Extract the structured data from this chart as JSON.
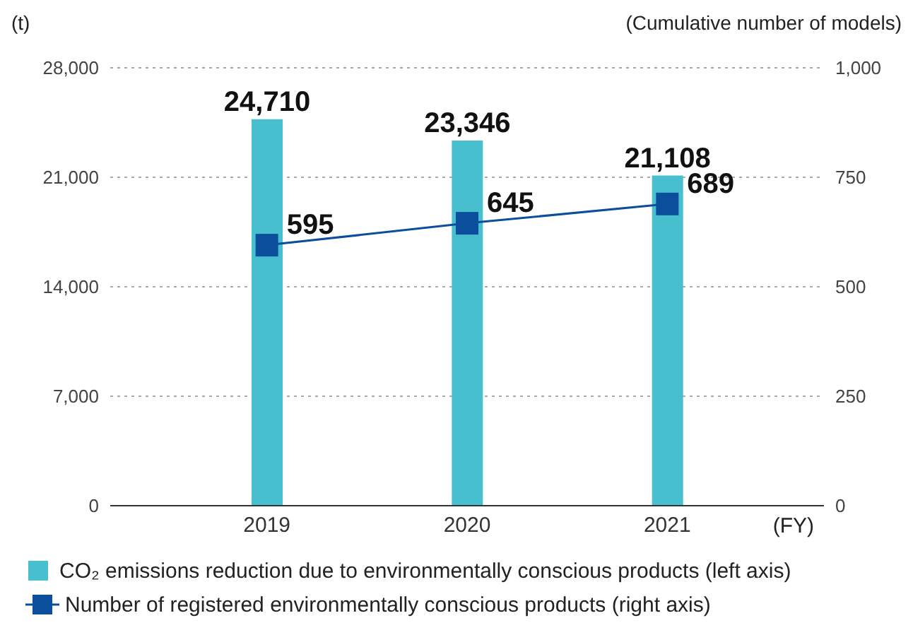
{
  "chart_data": {
    "type": "bar",
    "ylabel": "(t)",
    "y2label": "(Cumulative number of models)",
    "xlabel": "(FY)",
    "categories": [
      "2019",
      "2020",
      "2021"
    ],
    "series": [
      {
        "name": "CO₂ emissions reduction due to environmentally conscious products (left axis)",
        "color": "#48bfcf",
        "values": [
          24710,
          23346,
          21108
        ],
        "value_labels": [
          "24,710",
          "23,346",
          "21,108"
        ]
      },
      {
        "name": "Number of registered environmentally conscious products (right axis)",
        "type": "line",
        "axis": "y2",
        "color": "#0b4f9c",
        "values": [
          595,
          645,
          689
        ],
        "value_labels": [
          "595",
          "645",
          "689"
        ],
        "marker": "square",
        "line_style": "solid"
      }
    ],
    "ylim": [
      0,
      28000
    ],
    "yticks": [
      {
        "value": 0,
        "label": "0"
      },
      {
        "value": 7000,
        "label": "7,000"
      },
      {
        "value": 14000,
        "label": "14,000"
      },
      {
        "value": 21000,
        "label": "21,000"
      },
      {
        "value": 28000,
        "label": "28,000"
      }
    ],
    "y2lim": [
      0,
      1000
    ],
    "y2ticks": [
      {
        "value": 0,
        "label": "0"
      },
      {
        "value": 250,
        "label": "250"
      },
      {
        "value": 500,
        "label": "500"
      },
      {
        "value": 750,
        "label": "750"
      },
      {
        "value": 1000,
        "label": "1,000"
      }
    ],
    "grid": "y",
    "legend": "bottom"
  }
}
